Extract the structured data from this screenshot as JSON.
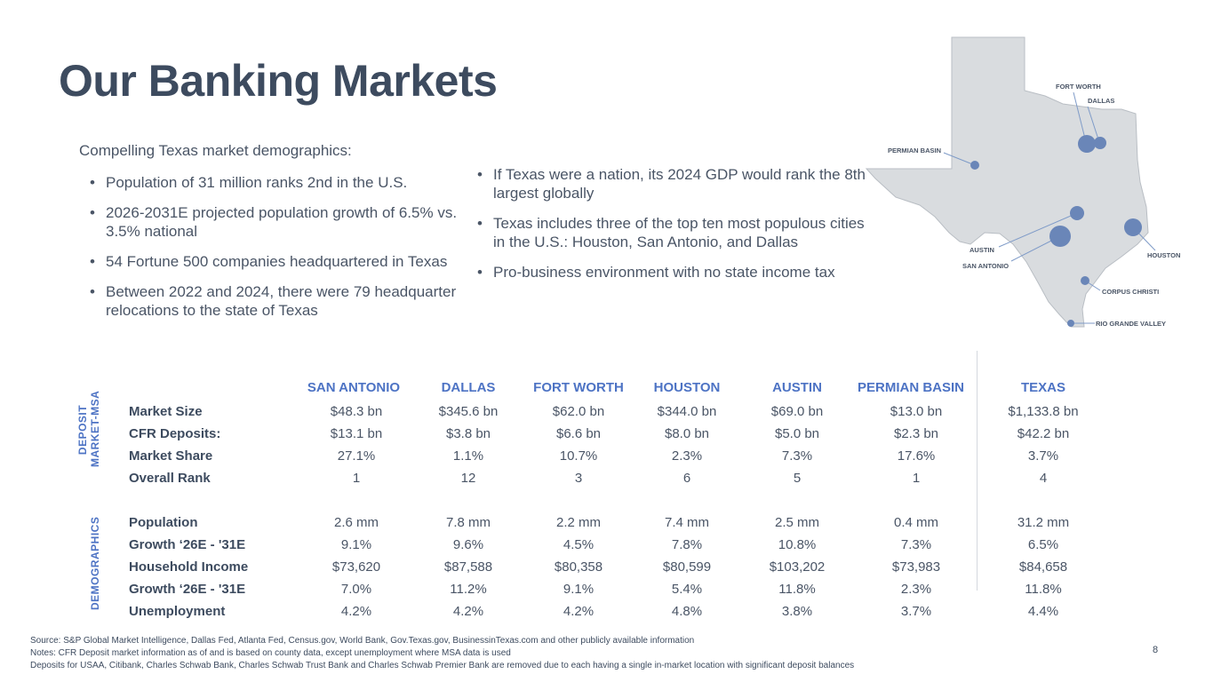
{
  "title": "Our Banking Markets",
  "intro": "Compelling Texas market demographics:",
  "bullets_left": [
    "Population of 31 million ranks 2nd in the U.S.",
    "2026-2031E projected population growth of 6.5% vs. 3.5% national",
    "54 Fortune 500 companies headquartered in Texas",
    "Between 2022 and 2024, there were 79 headquarter relocations to the state of Texas"
  ],
  "bullets_right": [
    "If Texas were a nation, its 2024 GDP would rank the 8th largest globally",
    "Texas includes three of the top ten most populous cities in the U.S.: Houston, San Antonio, and Dallas",
    "Pro-business environment with no state income tax"
  ],
  "map": {
    "labels": {
      "fort_worth": "FORT WORTH",
      "dallas": "DALLAS",
      "permian": "PERMIAN BASIN",
      "austin": "AUSTIN",
      "san_antonio": "SAN ANTONIO",
      "houston": "HOUSTON",
      "corpus": "CORPUS CHRISTI",
      "rgv": "RIO GRANDE VALLEY"
    },
    "colors": {
      "state": "#d9dcdf",
      "outline": "#b9bec4",
      "dot": "#6a86b8",
      "leader": "#7f9bc8"
    }
  },
  "table": {
    "side_labels": {
      "deposit": [
        "DEPOSIT",
        "MARKET-MSA"
      ],
      "demographics": "DEMOGRAPHICS"
    },
    "columns": [
      "SAN ANTONIO",
      "DALLAS",
      "FORT WORTH",
      "HOUSTON",
      "AUSTIN",
      "PERMIAN BASIN",
      "TEXAS"
    ],
    "rows": [
      {
        "label": "Market Size",
        "values": [
          "$48.3 bn",
          "$345.6 bn",
          "$62.0 bn",
          "$344.0 bn",
          "$69.0 bn",
          "$13.0 bn",
          "$1,133.8 bn"
        ]
      },
      {
        "label": "CFR Deposits:",
        "values": [
          "$13.1 bn",
          "$3.8 bn",
          "$6.6 bn",
          "$8.0 bn",
          "$5.0 bn",
          "$2.3 bn",
          "$42.2 bn"
        ]
      },
      {
        "label": "Market Share",
        "values": [
          "27.1%",
          "1.1%",
          "10.7%",
          "2.3%",
          "7.3%",
          "17.6%",
          "3.7%"
        ]
      },
      {
        "label": "Overall Rank",
        "values": [
          "1",
          "12",
          "3",
          "6",
          "5",
          "1",
          "4"
        ]
      },
      {
        "label": "Population",
        "values": [
          "2.6 mm",
          "7.8 mm",
          "2.2 mm",
          "7.4 mm",
          "2.5 mm",
          "0.4 mm",
          "31.2 mm"
        ]
      },
      {
        "label": "Growth ‘26E - '31E",
        "values": [
          "9.1%",
          "9.6%",
          "4.5%",
          "7.8%",
          "10.8%",
          "7.3%",
          "6.5%"
        ]
      },
      {
        "label": "Household Income",
        "values": [
          "$73,620",
          "$87,588",
          "$80,358",
          "$80,599",
          "$103,202",
          "$73,983",
          "$84,658"
        ]
      },
      {
        "label": "Growth ‘26E - '31E",
        "values": [
          "7.0%",
          "11.2%",
          "9.1%",
          "5.4%",
          "11.8%",
          "2.3%",
          "11.8%"
        ]
      },
      {
        "label": "Unemployment",
        "values": [
          "4.2%",
          "4.2%",
          "4.2%",
          "4.8%",
          "3.8%",
          "3.7%",
          "4.4%"
        ]
      }
    ]
  },
  "footnotes": [
    "Source: S&P Global Market Intelligence, Dallas Fed, Atlanta Fed, Census.gov, World Bank, Gov.Texas.gov, BusinessinTexas.com and other publicly available information",
    "Notes: CFR Deposit market information as of   and is based on county data, except unemployment where MSA data is used",
    "Deposits for USAA, Citibank, Charles Schwab Bank, Charles Schwab Trust Bank and Charles Schwab Premier Bank are removed due to each having a single in-market location with significant deposit balances"
  ],
  "page_number": "8"
}
